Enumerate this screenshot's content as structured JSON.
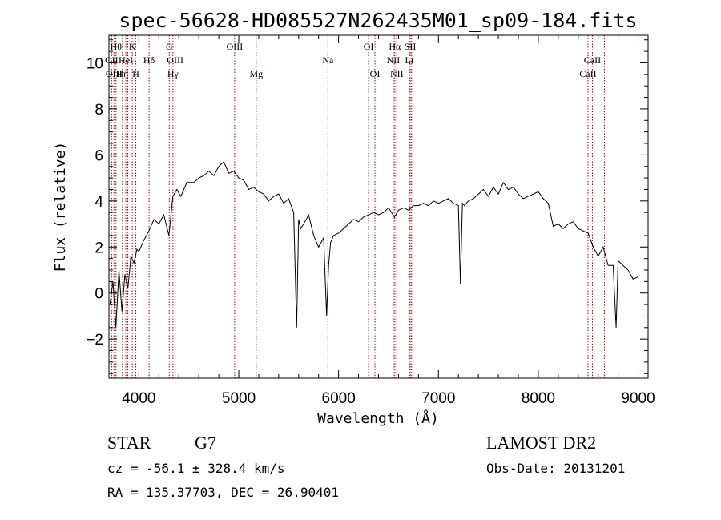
{
  "chart_data": {
    "type": "line",
    "title": "spec-56628-HD085527N262435M01_sp09-184.fits",
    "xlabel": "Wavelength (Å)",
    "ylabel": "Flux (relative)",
    "xlim": [
      3700,
      9100
    ],
    "ylim": [
      -3.7,
      11.2
    ],
    "xticks": [
      4000,
      5000,
      6000,
      7000,
      8000,
      9000
    ],
    "yticks": [
      -2,
      0,
      2,
      4,
      6,
      8,
      10
    ],
    "xtick_labels": [
      "4000",
      "5000",
      "6000",
      "7000",
      "8000",
      "9000"
    ],
    "ytick_labels": [
      "−2",
      "0",
      "2",
      "4",
      "6",
      "8",
      "10"
    ],
    "line_color": "#000000",
    "marker_color": "#aa0000",
    "series": [
      {
        "x": [
          3710,
          3740,
          3770,
          3800,
          3830,
          3860,
          3890,
          3920,
          3950,
          3980,
          4000,
          4050,
          4100,
          4150,
          4200,
          4250,
          4300,
          4340,
          4380,
          4420,
          4480,
          4550,
          4600,
          4650,
          4700,
          4750,
          4800,
          4850,
          4900,
          4950,
          5000,
          5050,
          5100,
          5150,
          5200,
          5250,
          5300,
          5350,
          5400,
          5450,
          5500,
          5550,
          5580,
          5600,
          5620,
          5650,
          5700,
          5750,
          5800,
          5850,
          5880,
          5900,
          5920,
          5950,
          6000,
          6050,
          6100,
          6150,
          6200,
          6250,
          6300,
          6350,
          6400,
          6450,
          6500,
          6560,
          6600,
          6650,
          6700,
          6750,
          6800,
          6850,
          6900,
          6950,
          7000,
          7050,
          7100,
          7150,
          7200,
          7220,
          7240,
          7260,
          7300,
          7350,
          7400,
          7450,
          7500,
          7550,
          7600,
          7650,
          7700,
          7750,
          7800,
          7850,
          7900,
          7950,
          8000,
          8050,
          8100,
          8150,
          8200,
          8250,
          8300,
          8350,
          8400,
          8450,
          8500,
          8550,
          8600,
          8650,
          8700,
          8750,
          8780,
          8800,
          8850,
          8900,
          8950,
          9000
        ],
        "y": [
          -0.5,
          0.5,
          -1.5,
          1.0,
          -0.8,
          0.8,
          0.2,
          1.6,
          1.3,
          1.9,
          1.8,
          2.3,
          2.7,
          3.2,
          3.0,
          3.4,
          2.5,
          4.2,
          4.5,
          4.2,
          4.8,
          4.8,
          5.0,
          5.1,
          5.3,
          5.1,
          5.5,
          5.7,
          5.2,
          5.3,
          5.0,
          4.9,
          4.5,
          4.6,
          4.4,
          4.3,
          4.0,
          4.2,
          4.3,
          3.9,
          4.1,
          3.5,
          -1.5,
          3.2,
          2.8,
          3.0,
          3.4,
          2.5,
          2.0,
          2.4,
          -1.0,
          1.2,
          2.2,
          2.5,
          2.6,
          2.8,
          3.0,
          3.2,
          3.1,
          3.3,
          3.4,
          3.5,
          3.4,
          3.5,
          3.7,
          3.3,
          3.6,
          3.7,
          3.6,
          3.8,
          3.8,
          3.9,
          3.8,
          4.0,
          3.9,
          4.0,
          4.1,
          3.9,
          3.8,
          0.4,
          3.9,
          3.8,
          4.0,
          4.1,
          4.3,
          4.5,
          4.2,
          4.6,
          4.3,
          4.8,
          4.5,
          4.6,
          4.3,
          4.1,
          4.2,
          4.3,
          4.4,
          4.1,
          3.9,
          2.9,
          3.0,
          2.8,
          3.0,
          3.1,
          2.8,
          2.7,
          2.6,
          2.0,
          1.6,
          2.0,
          1.2,
          1.2,
          -1.5,
          1.4,
          1.2,
          1.0,
          0.6,
          0.7
        ]
      }
    ],
    "line_markers": [
      {
        "x": 3727,
        "label": "OII",
        "row": 1
      },
      {
        "x": 3750,
        "label": "OIII",
        "row": 2
      },
      {
        "x": 3771,
        "label": "Hθ",
        "row": 0
      },
      {
        "x": 3835,
        "label": "Hη",
        "row": 2
      },
      {
        "x": 3869,
        "label": "HeI",
        "row": 1
      },
      {
        "x": 3889,
        "label": "",
        "row": 1
      },
      {
        "x": 3934,
        "label": "K",
        "row": 0
      },
      {
        "x": 3969,
        "label": "H",
        "row": 2
      },
      {
        "x": 4102,
        "label": "Hδ",
        "row": 1
      },
      {
        "x": 4304,
        "label": "G",
        "row": 0
      },
      {
        "x": 4341,
        "label": "Hγ",
        "row": 2
      },
      {
        "x": 4363,
        "label": "OIII",
        "row": 1
      },
      {
        "x": 4959,
        "label": "OIII",
        "row": 0
      },
      {
        "x": 5175,
        "label": "Mg",
        "row": 2
      },
      {
        "x": 5893,
        "label": "Na",
        "row": 1
      },
      {
        "x": 6300,
        "label": "OI",
        "row": 0
      },
      {
        "x": 6364,
        "label": "OI",
        "row": 2
      },
      {
        "x": 6548,
        "label": "NII",
        "row": 1
      },
      {
        "x": 6563,
        "label": "Hα",
        "row": 0
      },
      {
        "x": 6583,
        "label": "NII",
        "row": 2
      },
      {
        "x": 6708,
        "label": "Li",
        "row": 1
      },
      {
        "x": 6717,
        "label": "SII",
        "row": 0
      },
      {
        "x": 6731,
        "label": "",
        "row": 0
      },
      {
        "x": 8498,
        "label": "CaII",
        "row": 2
      },
      {
        "x": 8542,
        "label": "CaII",
        "row": 1
      },
      {
        "x": 8662,
        "label": "",
        "row": 1
      }
    ],
    "grid": false,
    "legend": "none"
  },
  "info": {
    "object_class": "STAR",
    "subclass": "G7",
    "survey": "LAMOST DR2",
    "redshift_line": "cz = -56.1 ± 328.4 km/s",
    "obs_date": "Obs-Date: 20131201",
    "coords": "RA = 135.37703, DEC =  26.90401"
  }
}
